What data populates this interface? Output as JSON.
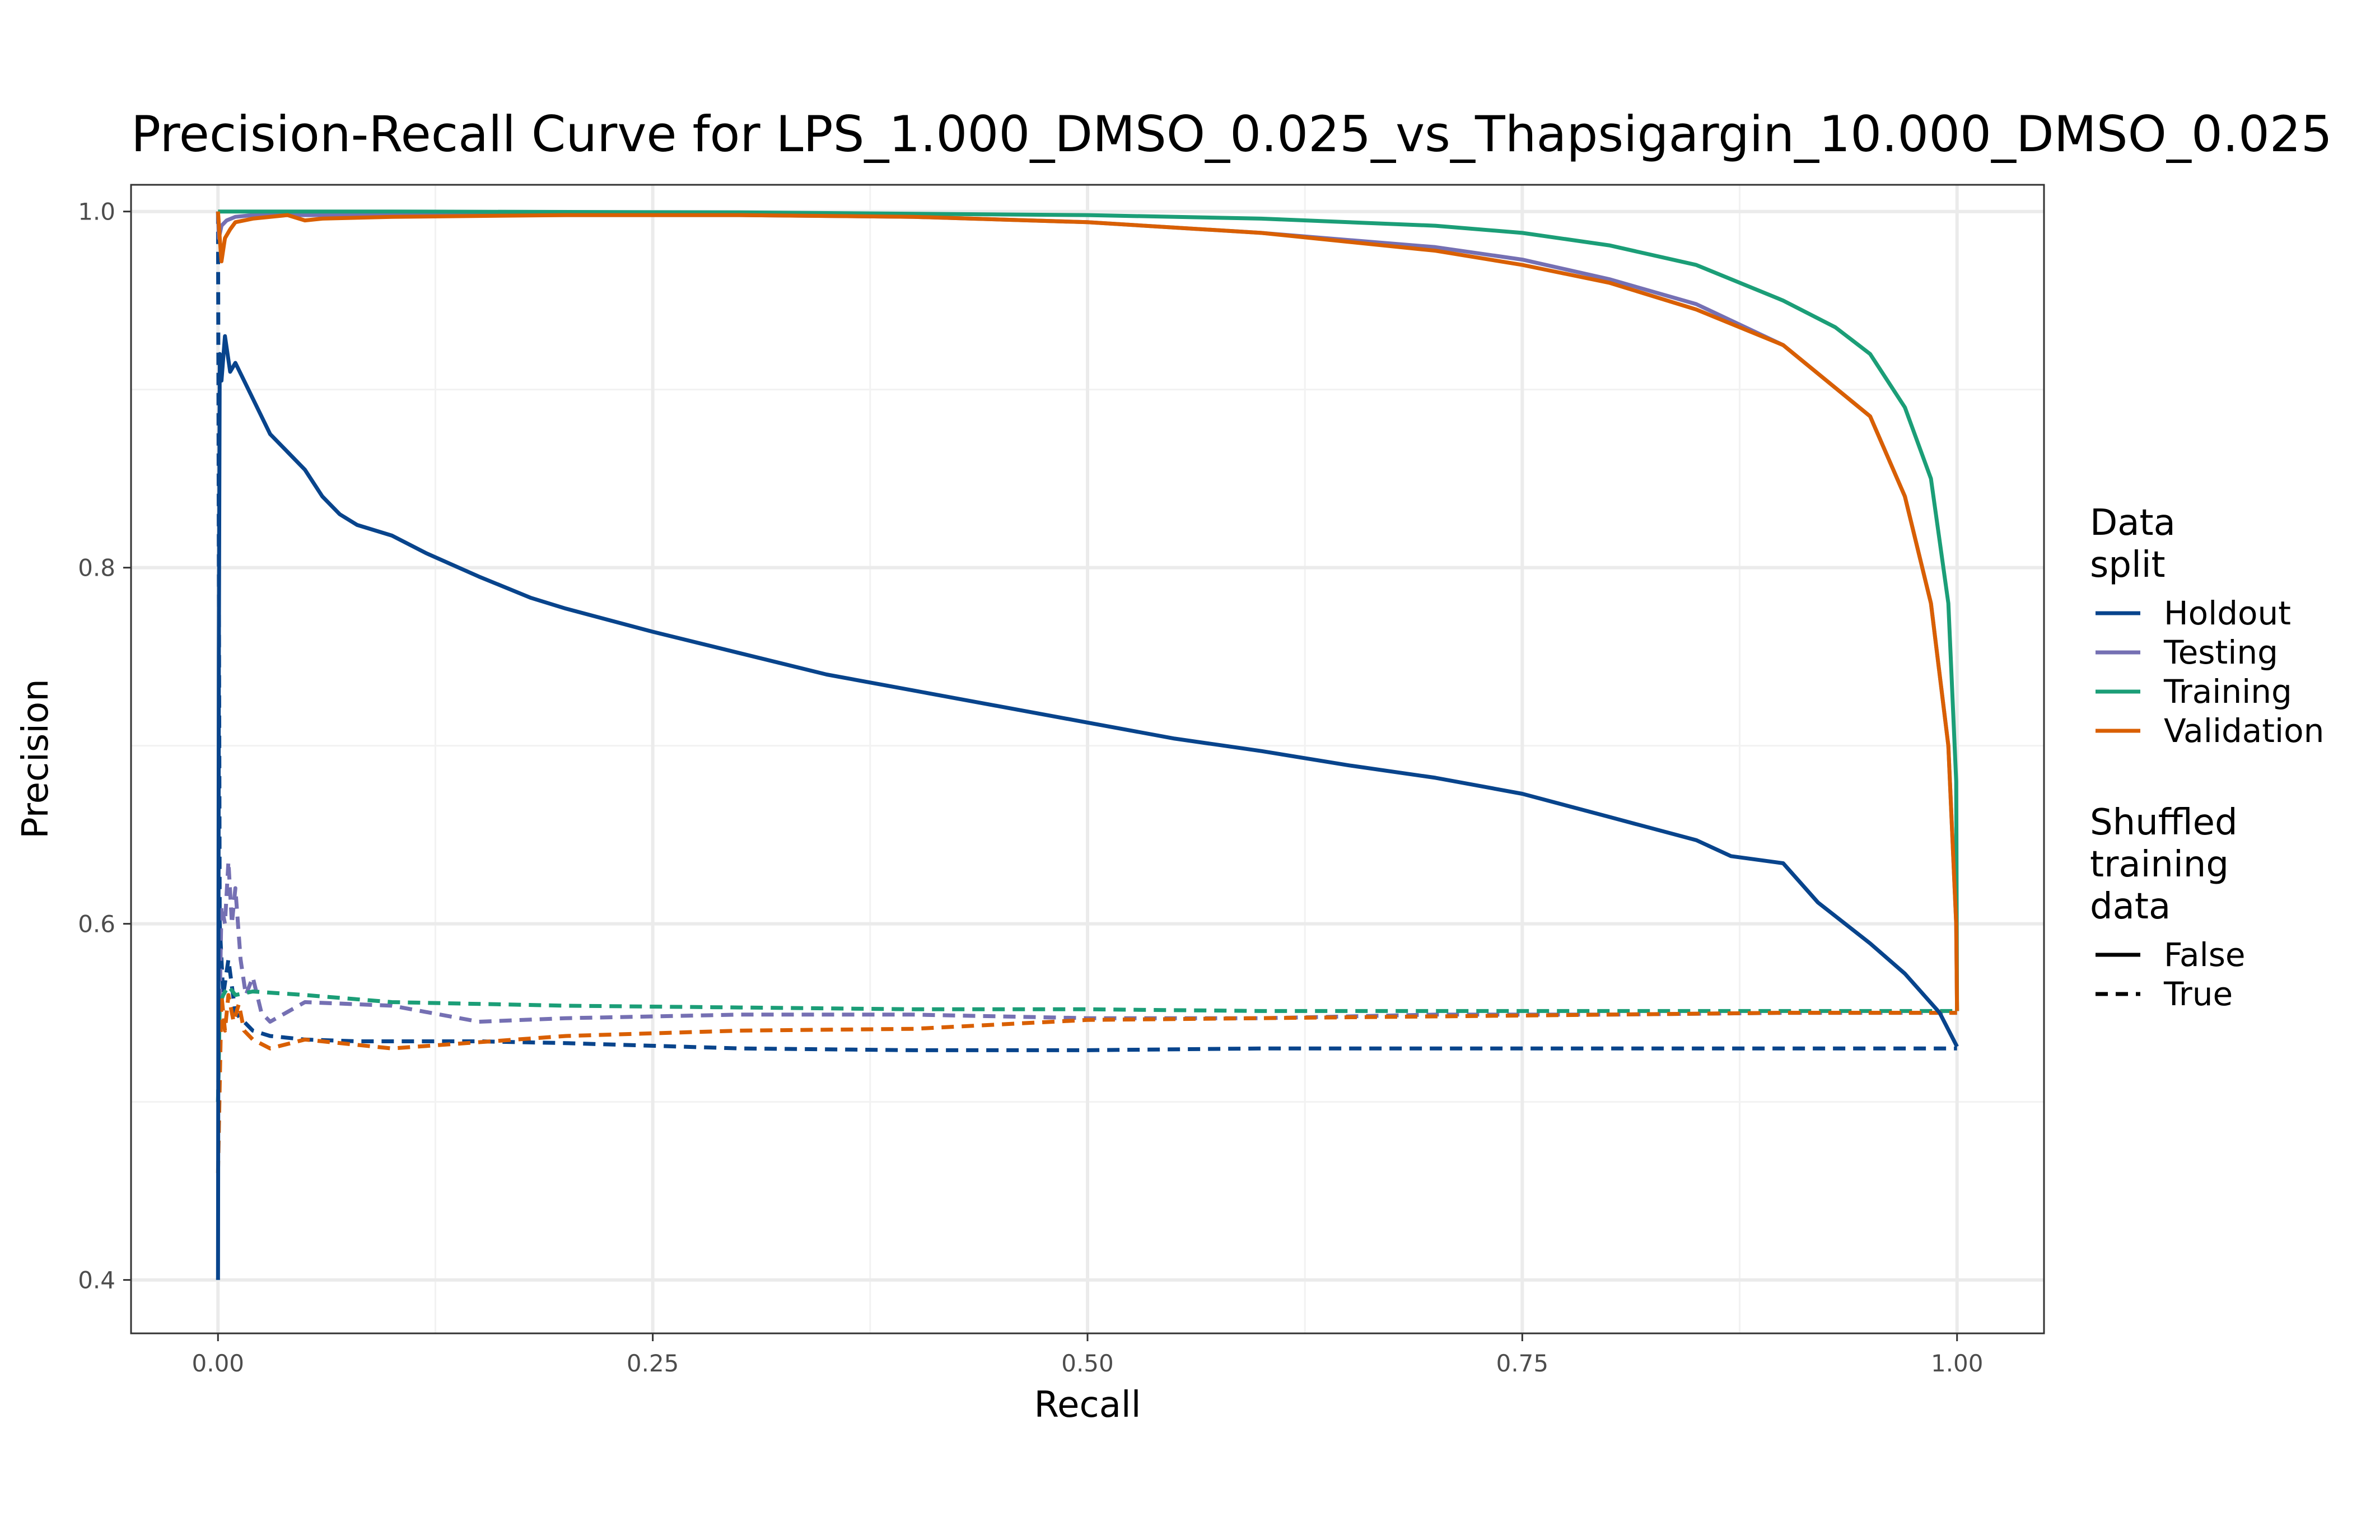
{
  "chart_data": {
    "type": "line",
    "title": "Precision-Recall Curve for LPS_1.000_DMSO_0.025_vs_Thapsigargin_10.000_DMSO_0.025",
    "xlabel": "Recall",
    "ylabel": "Precision",
    "xlim": [
      -0.05,
      1.05
    ],
    "ylim": [
      0.37,
      1.015
    ],
    "x_ticks": [
      0,
      0.25,
      0.5,
      0.75,
      1
    ],
    "x_tick_labels": [
      "0.00",
      "0.25",
      "0.50",
      "0.75",
      "1.00"
    ],
    "y_ticks": [
      0.4,
      0.6,
      0.8,
      1.0
    ],
    "y_tick_labels": [
      "0.4",
      "0.6",
      "0.8",
      "1.0"
    ],
    "grid": true,
    "legend_placement": "right",
    "legend": {
      "color_title": [
        "Data",
        "split"
      ],
      "linetype_title": [
        "Shuffled",
        "training",
        "data"
      ],
      "color_entries": [
        {
          "label": "Holdout",
          "color": "#08448c"
        },
        {
          "label": "Testing",
          "color": "#7570b3"
        },
        {
          "label": "Training",
          "color": "#1b9e77"
        },
        {
          "label": "Validation",
          "color": "#d95f02"
        }
      ],
      "linetype_entries": [
        {
          "label": "False",
          "dash": "solid"
        },
        {
          "label": "True",
          "dash": "dashed"
        }
      ]
    },
    "series": [
      {
        "split": "Holdout",
        "shuffled": "False",
        "color": "#08448c",
        "dash": "solid",
        "x": [
          0,
          0.0005,
          0.001,
          0.002,
          0.004,
          0.007,
          0.01,
          0.015,
          0.02,
          0.03,
          0.04,
          0.05,
          0.06,
          0.07,
          0.08,
          0.1,
          0.12,
          0.15,
          0.18,
          0.2,
          0.25,
          0.3,
          0.35,
          0.4,
          0.45,
          0.5,
          0.55,
          0.6,
          0.65,
          0.7,
          0.75,
          0.8,
          0.85,
          0.87,
          0.9,
          0.92,
          0.95,
          0.97,
          0.99,
          1.0
        ],
        "y": [
          0.4,
          0.75,
          0.92,
          0.905,
          0.93,
          0.91,
          0.915,
          0.905,
          0.895,
          0.875,
          0.865,
          0.855,
          0.84,
          0.83,
          0.824,
          0.818,
          0.808,
          0.795,
          0.783,
          0.777,
          0.764,
          0.752,
          0.74,
          0.731,
          0.722,
          0.713,
          0.704,
          0.697,
          0.689,
          0.682,
          0.673,
          0.66,
          0.647,
          0.638,
          0.634,
          0.612,
          0.589,
          0.572,
          0.55,
          0.531
        ]
      },
      {
        "split": "Testing",
        "shuffled": "False",
        "color": "#7570b3",
        "dash": "solid",
        "x": [
          0,
          0.0005,
          0.002,
          0.005,
          0.01,
          0.02,
          0.05,
          0.1,
          0.2,
          0.3,
          0.4,
          0.5,
          0.6,
          0.7,
          0.75,
          0.8,
          0.85,
          0.9,
          0.95,
          0.97,
          0.985,
          0.995,
          0.9995,
          1.0
        ],
        "y": [
          1.0,
          0.985,
          0.992,
          0.995,
          0.997,
          0.998,
          0.998,
          0.998,
          0.998,
          0.998,
          0.997,
          0.994,
          0.988,
          0.98,
          0.973,
          0.962,
          0.948,
          0.925,
          0.885,
          0.84,
          0.78,
          0.7,
          0.6,
          0.551
        ]
      },
      {
        "split": "Training",
        "shuffled": "False",
        "color": "#1b9e77",
        "dash": "solid",
        "x": [
          0,
          0.0005,
          0.01,
          0.1,
          0.3,
          0.5,
          0.6,
          0.7,
          0.75,
          0.8,
          0.85,
          0.9,
          0.93,
          0.95,
          0.97,
          0.985,
          0.995,
          0.9995,
          1.0
        ],
        "y": [
          1.0,
          1.0,
          1.0,
          1.0,
          0.9995,
          0.998,
          0.996,
          0.992,
          0.988,
          0.981,
          0.97,
          0.95,
          0.935,
          0.92,
          0.89,
          0.85,
          0.78,
          0.68,
          0.551
        ]
      },
      {
        "split": "Validation",
        "shuffled": "False",
        "color": "#d95f02",
        "dash": "solid",
        "x": [
          0,
          0.001,
          0.002,
          0.004,
          0.007,
          0.01,
          0.02,
          0.04,
          0.05,
          0.06,
          0.1,
          0.2,
          0.3,
          0.4,
          0.5,
          0.6,
          0.7,
          0.75,
          0.8,
          0.85,
          0.9,
          0.95,
          0.97,
          0.985,
          0.995,
          0.9995,
          1.0
        ],
        "y": [
          1.0,
          0.985,
          0.972,
          0.985,
          0.99,
          0.994,
          0.996,
          0.998,
          0.995,
          0.996,
          0.997,
          0.998,
          0.998,
          0.997,
          0.994,
          0.988,
          0.978,
          0.97,
          0.96,
          0.945,
          0.925,
          0.885,
          0.84,
          0.78,
          0.7,
          0.6,
          0.551
        ]
      },
      {
        "split": "Holdout",
        "shuffled": "True",
        "color": "#08448c",
        "dash": "dashed",
        "x": [
          0,
          0.001,
          0.003,
          0.006,
          0.01,
          0.015,
          0.02,
          0.03,
          0.05,
          0.08,
          0.1,
          0.15,
          0.2,
          0.3,
          0.4,
          0.5,
          0.6,
          0.7,
          0.8,
          0.9,
          1.0
        ],
        "y": [
          1.0,
          0.6,
          0.56,
          0.58,
          0.55,
          0.545,
          0.54,
          0.537,
          0.535,
          0.534,
          0.534,
          0.534,
          0.533,
          0.53,
          0.529,
          0.529,
          0.53,
          0.53,
          0.53,
          0.53,
          0.53
        ]
      },
      {
        "split": "Testing",
        "shuffled": "True",
        "color": "#7570b3",
        "dash": "dashed",
        "x": [
          0,
          0.002,
          0.004,
          0.006,
          0.008,
          0.01,
          0.013,
          0.016,
          0.02,
          0.025,
          0.03,
          0.05,
          0.1,
          0.15,
          0.2,
          0.3,
          0.4,
          0.5,
          0.6,
          0.7,
          0.8,
          0.9,
          1.0
        ],
        "y": [
          0.5,
          0.61,
          0.6,
          0.635,
          0.6,
          0.62,
          0.58,
          0.56,
          0.57,
          0.55,
          0.545,
          0.556,
          0.554,
          0.545,
          0.547,
          0.549,
          0.549,
          0.547,
          0.547,
          0.549,
          0.549,
          0.55,
          0.55
        ]
      },
      {
        "split": "Training",
        "shuffled": "True",
        "color": "#1b9e77",
        "dash": "dashed",
        "x": [
          0,
          0.001,
          0.003,
          0.006,
          0.01,
          0.02,
          0.05,
          0.1,
          0.2,
          0.3,
          0.4,
          0.5,
          0.6,
          0.7,
          0.8,
          0.9,
          1.0
        ],
        "y": [
          0.5,
          0.555,
          0.56,
          0.565,
          0.56,
          0.562,
          0.56,
          0.556,
          0.554,
          0.553,
          0.552,
          0.552,
          0.551,
          0.551,
          0.551,
          0.551,
          0.551
        ]
      },
      {
        "split": "Validation",
        "shuffled": "True",
        "color": "#d95f02",
        "dash": "dashed",
        "x": [
          0,
          0.002,
          0.004,
          0.006,
          0.009,
          0.012,
          0.015,
          0.02,
          0.03,
          0.05,
          0.1,
          0.2,
          0.3,
          0.4,
          0.5,
          0.6,
          0.7,
          0.8,
          0.9,
          1.0
        ],
        "y": [
          0.46,
          0.56,
          0.54,
          0.56,
          0.545,
          0.555,
          0.54,
          0.535,
          0.53,
          0.535,
          0.53,
          0.537,
          0.54,
          0.541,
          0.546,
          0.547,
          0.548,
          0.549,
          0.55,
          0.55
        ]
      }
    ]
  }
}
